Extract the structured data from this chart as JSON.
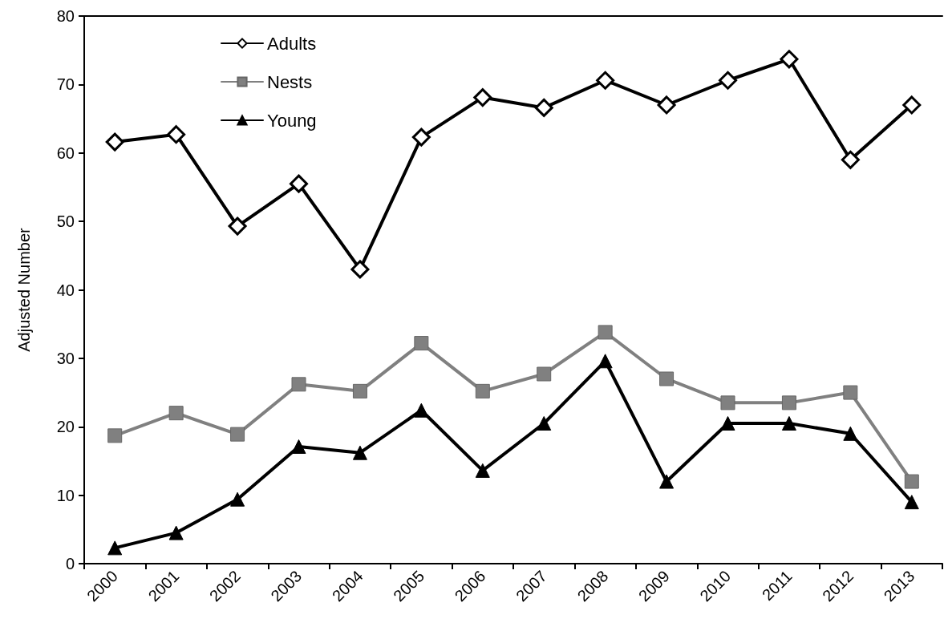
{
  "chart_data": {
    "type": "line",
    "ylabel": "Adjusted Number",
    "categories": [
      "2000",
      "2001",
      "2002",
      "2003",
      "2004",
      "2005",
      "2006",
      "2007",
      "2008",
      "2009",
      "2010",
      "2011",
      "2012",
      "2013"
    ],
    "series": [
      {
        "name": "Adults",
        "color": "#000000",
        "marker": "diamond",
        "values": [
          61.6,
          62.7,
          49.3,
          55.5,
          43,
          62.3,
          68.1,
          66.6,
          70.6,
          67,
          70.6,
          73.7,
          59,
          67
        ]
      },
      {
        "name": "Nests",
        "color": "#808080",
        "marker": "square",
        "values": [
          18.7,
          22,
          18.9,
          26.2,
          25.2,
          32.2,
          25.2,
          27.7,
          33.8,
          27,
          23.5,
          23.5,
          25,
          12
        ]
      },
      {
        "name": "Young",
        "color": "#000000",
        "marker": "triangle",
        "values": [
          2.3,
          4.5,
          9.4,
          17.1,
          16.2,
          22.4,
          13.6,
          20.5,
          29.6,
          12,
          20.5,
          20.5,
          19,
          9
        ]
      }
    ],
    "ylim": [
      0,
      80
    ],
    "yticks": [
      0,
      10,
      20,
      30,
      40,
      50,
      60,
      70,
      80
    ],
    "grid": false,
    "legend": "top left",
    "line_style": "solid"
  }
}
